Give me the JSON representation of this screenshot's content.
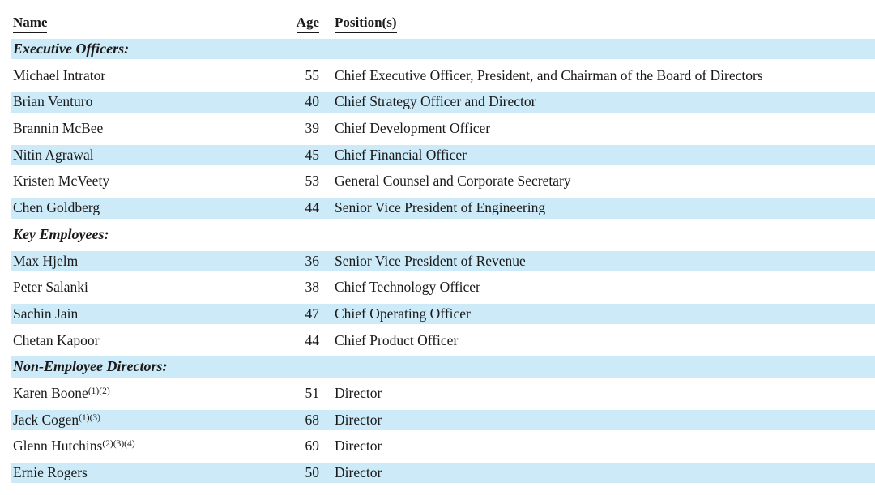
{
  "page": {
    "background": "#ffffff"
  },
  "colors": {
    "band": "#cdeaf8",
    "text": "#1a1a1a"
  },
  "table": {
    "headers": {
      "name": "Name",
      "age": "Age",
      "position": "Position(s)"
    },
    "rows": [
      {
        "type": "section",
        "label": "Executive Officers:"
      },
      {
        "type": "person",
        "name": "Michael Intrator",
        "sup": "",
        "age": "55",
        "position": "Chief Executive Officer, President, and Chairman of the Board of Directors"
      },
      {
        "type": "person",
        "name": "Brian Venturo",
        "sup": "",
        "age": "40",
        "position": "Chief Strategy Officer and Director"
      },
      {
        "type": "person",
        "name": "Brannin McBee",
        "sup": "",
        "age": "39",
        "position": "Chief Development Officer"
      },
      {
        "type": "person",
        "name": "Nitin Agrawal",
        "sup": "",
        "age": "45",
        "position": "Chief Financial Officer"
      },
      {
        "type": "person",
        "name": "Kristen McVeety",
        "sup": "",
        "age": "53",
        "position": "General Counsel and Corporate Secretary"
      },
      {
        "type": "person",
        "name": "Chen Goldberg",
        "sup": "",
        "age": "44",
        "position": "Senior Vice President of Engineering"
      },
      {
        "type": "section",
        "label": "Key Employees:"
      },
      {
        "type": "person",
        "name": "Max Hjelm",
        "sup": "",
        "age": "36",
        "position": "Senior Vice President of Revenue"
      },
      {
        "type": "person",
        "name": "Peter Salanki",
        "sup": "",
        "age": "38",
        "position": "Chief Technology Officer"
      },
      {
        "type": "person",
        "name": "Sachin Jain",
        "sup": "",
        "age": "47",
        "position": "Chief Operating Officer"
      },
      {
        "type": "person",
        "name": "Chetan Kapoor",
        "sup": "",
        "age": "44",
        "position": "Chief Product Officer"
      },
      {
        "type": "section",
        "label": "Non-Employee Directors:"
      },
      {
        "type": "person",
        "name": "Karen Boone",
        "sup": "(1)(2)",
        "age": "51",
        "position": "Director"
      },
      {
        "type": "person",
        "name": "Jack Cogen",
        "sup": "(1)(3)",
        "age": "68",
        "position": "Director"
      },
      {
        "type": "person",
        "name": "Glenn Hutchins",
        "sup": "(2)(3)(4)",
        "age": "69",
        "position": "Director"
      },
      {
        "type": "person",
        "name": "Ernie Rogers",
        "sup": "",
        "age": "50",
        "position": "Director"
      }
    ]
  }
}
